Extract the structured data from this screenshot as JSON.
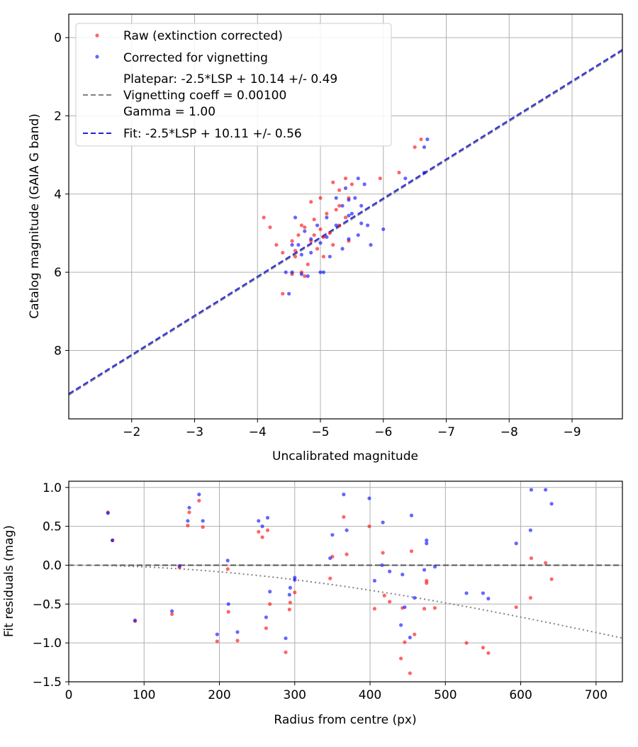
{
  "chart_data": [
    {
      "type": "scatter",
      "xlabel": "Uncalibrated magnitude",
      "ylabel": "Catalog magnitude (GAIA G band)",
      "xlim": [
        -1.0,
        -9.8
      ],
      "ylim": [
        9.75,
        -0.6
      ],
      "x_ticks": [
        -2,
        -3,
        -4,
        -5,
        -6,
        -7,
        -8,
        -9
      ],
      "y_ticks": [
        0,
        2,
        4,
        6,
        8
      ],
      "x_tick_labels": [
        "−2",
        "−3",
        "−4",
        "−5",
        "−6",
        "−7",
        "−8",
        "−9"
      ],
      "y_tick_labels": [
        "0",
        "2",
        "4",
        "6",
        "8"
      ],
      "grid": true,
      "legend_position": "top-left",
      "legend": {
        "raw": "Raw (extinction corrected)",
        "corrected": "Corrected for vignetting",
        "platepar_line1": "Platepar: -2.5*LSP + 10.14 +/- 0.49",
        "platepar_line2": "Vignetting coeff = 0.00100",
        "platepar_line3": "Gamma = 1.00",
        "fit": "Fit: -2.5*LSP + 10.11 +/- 0.56"
      },
      "lines": [
        {
          "name": "platepar",
          "intercept": 10.14,
          "color": "#808080",
          "style": "dashed"
        },
        {
          "name": "fit",
          "intercept": 10.11,
          "color": "#2020e0",
          "style": "dashed"
        }
      ],
      "series": [
        {
          "name": "Raw (extinction corrected)",
          "color": "#ff0000",
          "points": [
            [
              -6.6,
              2.6
            ],
            [
              -6.5,
              2.8
            ],
            [
              -6.25,
              3.45
            ],
            [
              -5.95,
              3.6
            ],
            [
              -5.4,
              3.6
            ],
            [
              -5.5,
              3.75
            ],
            [
              -5.2,
              3.7
            ],
            [
              -5.3,
              3.9
            ],
            [
              -5.0,
              4.1
            ],
            [
              -5.3,
              4.3
            ],
            [
              -5.1,
              4.5
            ],
            [
              -4.85,
              4.2
            ],
            [
              -4.9,
              4.65
            ],
            [
              -5.05,
              5.1
            ],
            [
              -4.95,
              5.4
            ],
            [
              -4.75,
              4.85
            ],
            [
              -4.65,
              5.05
            ],
            [
              -4.55,
              5.2
            ],
            [
              -4.4,
              5.5
            ],
            [
              -4.3,
              5.3
            ],
            [
              -4.2,
              4.85
            ],
            [
              -4.1,
              4.6
            ],
            [
              -4.6,
              5.6
            ],
            [
              -4.8,
              5.8
            ],
            [
              -4.7,
              6.0
            ],
            [
              -4.55,
              6.05
            ],
            [
              -4.75,
              6.1
            ],
            [
              -4.4,
              6.55
            ],
            [
              -5.05,
              5.6
            ],
            [
              -5.2,
              5.3
            ],
            [
              -5.45,
              5.2
            ],
            [
              -5.3,
              4.8
            ],
            [
              -5.4,
              4.6
            ],
            [
              -5.0,
              4.9
            ],
            [
              -4.85,
              5.2
            ],
            [
              -4.6,
              5.45
            ],
            [
              -5.15,
              5.0
            ],
            [
              -4.7,
              4.8
            ],
            [
              -4.9,
              5.05
            ],
            [
              -5.25,
              4.4
            ],
            [
              -5.45,
              4.1
            ]
          ]
        },
        {
          "name": "Corrected for vignetting",
          "color": "#0000ff",
          "points": [
            [
              -6.7,
              2.6
            ],
            [
              -6.65,
              2.8
            ],
            [
              -6.65,
              3.45
            ],
            [
              -6.35,
              3.6
            ],
            [
              -5.6,
              3.6
            ],
            [
              -5.7,
              3.75
            ],
            [
              -5.4,
              3.85
            ],
            [
              -5.55,
              4.1
            ],
            [
              -5.45,
              4.15
            ],
            [
              -5.65,
              4.3
            ],
            [
              -5.5,
              4.5
            ],
            [
              -5.25,
              4.1
            ],
            [
              -5.35,
              4.3
            ],
            [
              -5.45,
              4.55
            ],
            [
              -5.65,
              4.75
            ],
            [
              -5.75,
              4.8
            ],
            [
              -6.0,
              4.9
            ],
            [
              -5.6,
              5.05
            ],
            [
              -5.8,
              5.3
            ],
            [
              -5.45,
              5.15
            ],
            [
              -5.35,
              5.4
            ],
            [
              -5.25,
              4.8
            ],
            [
              -5.1,
              5.1
            ],
            [
              -5.0,
              5.25
            ],
            [
              -4.95,
              4.8
            ],
            [
              -4.75,
              4.95
            ],
            [
              -4.85,
              5.15
            ],
            [
              -4.65,
              5.3
            ],
            [
              -4.55,
              5.3
            ],
            [
              -4.6,
              4.6
            ],
            [
              -4.85,
              5.5
            ],
            [
              -4.7,
              5.55
            ],
            [
              -4.45,
              6.0
            ],
            [
              -4.55,
              6.0
            ],
            [
              -4.7,
              6.05
            ],
            [
              -5.0,
              6.0
            ],
            [
              -4.8,
              6.1
            ],
            [
              -4.5,
              6.55
            ],
            [
              -5.05,
              6.0
            ],
            [
              -5.15,
              5.6
            ],
            [
              -5.1,
              4.6
            ]
          ]
        }
      ]
    },
    {
      "type": "scatter",
      "xlabel": "Radius from centre (px)",
      "ylabel": "Fit residuals (mag)",
      "xlim": [
        0,
        735
      ],
      "ylim": [
        -1.5,
        1.08
      ],
      "x_ticks": [
        0,
        100,
        200,
        300,
        400,
        500,
        600,
        700
      ],
      "y_ticks": [
        -1.5,
        -1.0,
        -0.5,
        0.0,
        0.5,
        1.0
      ],
      "x_tick_labels": [
        "0",
        "100",
        "200",
        "300",
        "400",
        "500",
        "600",
        "700"
      ],
      "y_tick_labels": [
        "−1.5",
        "−1.0",
        "−0.5",
        "0.0",
        "0.5",
        "1.0"
      ],
      "grid": true,
      "vignetting_coeff": 0.001,
      "zero_line": 0.0,
      "series": [
        {
          "name": "Raw (extinction corrected)",
          "color": "#ff0000",
          "points": [
            [
              52,
              0.68
            ],
            [
              58,
              0.32
            ],
            [
              88,
              -0.72
            ],
            [
              137,
              -0.63
            ],
            [
              147,
              -0.03
            ],
            [
              158,
              0.51
            ],
            [
              160,
              0.68
            ],
            [
              173,
              0.83
            ],
            [
              178,
              0.49
            ],
            [
              197,
              -0.98
            ],
            [
              211,
              -0.05
            ],
            [
              212,
              -0.6
            ],
            [
              224,
              -0.97
            ],
            [
              252,
              0.43
            ],
            [
              257,
              0.36
            ],
            [
              262,
              -0.81
            ],
            [
              264,
              0.45
            ],
            [
              267,
              -0.5
            ],
            [
              288,
              -1.12
            ],
            [
              293,
              -0.57
            ],
            [
              294,
              -0.48
            ],
            [
              300,
              -0.35
            ],
            [
              347,
              -0.17
            ],
            [
              350,
              0.11
            ],
            [
              365,
              0.62
            ],
            [
              369,
              0.14
            ],
            [
              399,
              0.5
            ],
            [
              406,
              -0.56
            ],
            [
              417,
              0.16
            ],
            [
              419,
              -0.39
            ],
            [
              426,
              -0.47
            ],
            [
              441,
              -1.2
            ],
            [
              443,
              -0.55
            ],
            [
              446,
              -0.99
            ],
            [
              453,
              -1.39
            ],
            [
              455,
              0.18
            ],
            [
              459,
              -0.89
            ],
            [
              472,
              -0.56
            ],
            [
              475,
              -0.2
            ],
            [
              475,
              -0.23
            ],
            [
              486,
              -0.55
            ],
            [
              528,
              -1.0
            ],
            [
              550,
              -1.06
            ],
            [
              557,
              -1.13
            ],
            [
              594,
              -0.54
            ],
            [
              613,
              -0.42
            ],
            [
              614,
              0.09
            ],
            [
              633,
              0.03
            ],
            [
              641,
              -0.18
            ]
          ]
        },
        {
          "name": "Corrected for vignetting",
          "color": "#0000ff",
          "points": [
            [
              52,
              0.67
            ],
            [
              58,
              0.32
            ],
            [
              88,
              -0.71
            ],
            [
              137,
              -0.59
            ],
            [
              147,
              -0.01
            ],
            [
              158,
              0.57
            ],
            [
              160,
              0.74
            ],
            [
              173,
              0.91
            ],
            [
              178,
              0.57
            ],
            [
              197,
              -0.89
            ],
            [
              211,
              0.06
            ],
            [
              212,
              -0.5
            ],
            [
              224,
              -0.86
            ],
            [
              252,
              0.57
            ],
            [
              257,
              0.5
            ],
            [
              262,
              -0.67
            ],
            [
              264,
              0.61
            ],
            [
              267,
              -0.34
            ],
            [
              288,
              -0.94
            ],
            [
              293,
              -0.38
            ],
            [
              294,
              -0.29
            ],
            [
              300,
              -0.16
            ],
            [
              300,
              -0.19
            ],
            [
              347,
              0.09
            ],
            [
              350,
              0.39
            ],
            [
              365,
              0.91
            ],
            [
              369,
              0.45
            ],
            [
              399,
              0.86
            ],
            [
              406,
              -0.2
            ],
            [
              417,
              0.55
            ],
            [
              416,
              0.0
            ],
            [
              426,
              -0.08
            ],
            [
              441,
              -0.77
            ],
            [
              443,
              -0.12
            ],
            [
              446,
              -0.54
            ],
            [
              453,
              -0.93
            ],
            [
              455,
              0.64
            ],
            [
              459,
              -0.42
            ],
            [
              472,
              -0.06
            ],
            [
              475,
              0.32
            ],
            [
              475,
              0.28
            ],
            [
              486,
              -0.02
            ],
            [
              528,
              -0.36
            ],
            [
              550,
              -0.36
            ],
            [
              557,
              -0.43
            ],
            [
              594,
              0.28
            ],
            [
              613,
              0.45
            ],
            [
              614,
              0.97
            ],
            [
              633,
              0.97
            ],
            [
              641,
              0.79
            ]
          ]
        }
      ]
    }
  ]
}
